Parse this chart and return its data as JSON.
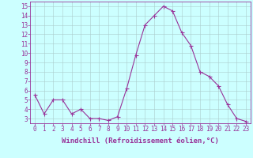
{
  "x": [
    0,
    1,
    2,
    3,
    4,
    5,
    6,
    7,
    8,
    9,
    10,
    11,
    12,
    13,
    14,
    15,
    16,
    17,
    18,
    19,
    20,
    21,
    22,
    23
  ],
  "y": [
    5.5,
    3.5,
    5.0,
    5.0,
    3.5,
    4.0,
    3.0,
    3.0,
    2.8,
    3.2,
    6.2,
    9.8,
    13.0,
    14.0,
    15.0,
    14.5,
    12.2,
    10.8,
    8.0,
    7.5,
    6.5,
    4.5,
    3.0,
    2.7
  ],
  "line_color": "#993399",
  "marker": "D",
  "marker_size": 1.8,
  "line_width": 0.8,
  "background_color": "#ccffff",
  "grid_color": "#aacccc",
  "xlabel": "Windchill (Refroidissement éolien,°C)",
  "ylim": [
    2.5,
    15.5
  ],
  "xlim": [
    -0.5,
    23.5
  ],
  "yticks": [
    3,
    4,
    5,
    6,
    7,
    8,
    9,
    10,
    11,
    12,
    13,
    14,
    15
  ],
  "xticks": [
    0,
    1,
    2,
    3,
    4,
    5,
    6,
    7,
    8,
    9,
    10,
    11,
    12,
    13,
    14,
    15,
    16,
    17,
    18,
    19,
    20,
    21,
    22,
    23
  ],
  "tick_fontsize": 5.5,
  "xlabel_fontsize": 6.5
}
